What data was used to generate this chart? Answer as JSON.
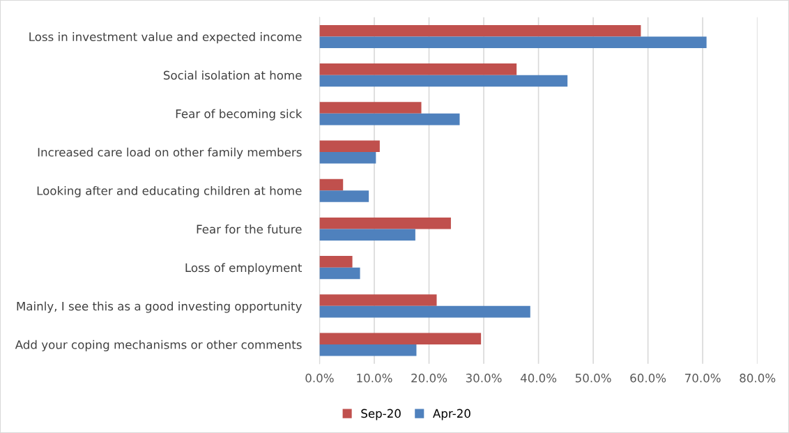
{
  "chart_data": {
    "type": "bar",
    "orientation": "horizontal",
    "categories": [
      "Loss in investment value and expected income",
      "Social isolation at home",
      "Fear of becoming sick",
      "Increased care load on other family members",
      "Looking after and educating children at home",
      "Fear for the future",
      "Loss of employment",
      "Mainly, I see this as a good investing opportunity",
      "Add your coping mechanisms or other comments"
    ],
    "series": [
      {
        "name": "Sep-20",
        "color": "#c0504d",
        "values": [
          58.7,
          36.0,
          18.6,
          11.0,
          4.3,
          24.0,
          6.0,
          21.4,
          29.5
        ]
      },
      {
        "name": "Apr-20",
        "color": "#4f81bd",
        "values": [
          70.7,
          45.3,
          25.6,
          10.3,
          9.0,
          17.5,
          7.4,
          38.5,
          17.7
        ]
      }
    ],
    "xlim": [
      0,
      80
    ],
    "xticks": [
      {
        "value": 0,
        "label": "0.0%"
      },
      {
        "value": 10,
        "label": "10.0%"
      },
      {
        "value": 20,
        "label": "20.0%"
      },
      {
        "value": 30,
        "label": "30.0%"
      },
      {
        "value": 40,
        "label": "40.0%"
      },
      {
        "value": 50,
        "label": "50.0%"
      },
      {
        "value": 60,
        "label": "60.0%"
      },
      {
        "value": 70,
        "label": "70.0%"
      },
      {
        "value": 80,
        "label": "80.0%"
      }
    ],
    "grid": "x",
    "legend": "bottom"
  }
}
